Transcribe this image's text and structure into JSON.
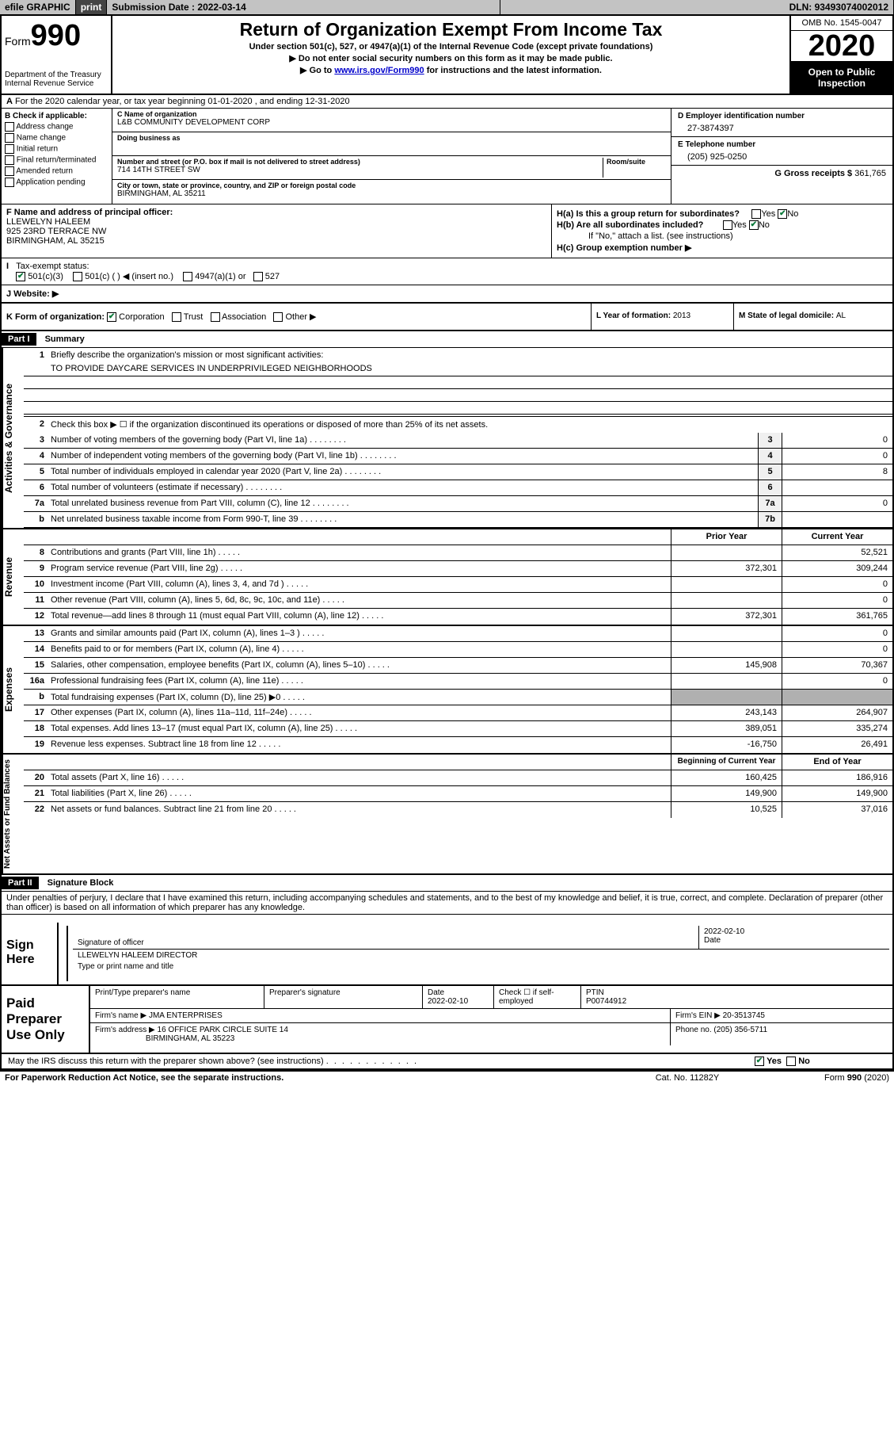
{
  "top_bar": {
    "efile": "efile GRAPHIC",
    "print": "print",
    "sub_date_label": "Submission Date : ",
    "sub_date": "2022-03-14",
    "dln": "DLN: 93493074002012"
  },
  "header": {
    "form_label": "Form",
    "form_num": "990",
    "dept": "Department of the Treasury\nInternal Revenue Service",
    "title": "Return of Organization Exempt From Income Tax",
    "sub1": "Under section 501(c), 527, or 4947(a)(1) of the Internal Revenue Code (except private foundations)",
    "sub2": "▶ Do not enter social security numbers on this form as it may be made public.",
    "sub3_a": "▶ Go to ",
    "sub3_link": "www.irs.gov/Form990",
    "sub3_b": " for instructions and the latest information.",
    "omb": "OMB No. 1545-0047",
    "year": "2020",
    "open": "Open to Public Inspection"
  },
  "line_a": "For the 2020 calendar year, or tax year beginning 01-01-2020   , and ending 12-31-2020",
  "box_b": {
    "title": "B Check if applicable:",
    "items": [
      "Address change",
      "Name change",
      "Initial return",
      "Final return/terminated",
      "Amended return",
      "Application pending"
    ]
  },
  "box_c": {
    "name_label": "C Name of organization",
    "name": "L&B COMMUNITY DEVELOPMENT CORP",
    "dba_label": "Doing business as",
    "addr_label": "Number and street (or P.O. box if mail is not delivered to street address)",
    "room_label": "Room/suite",
    "addr": "714 14TH STREET SW",
    "city_label": "City or town, state or province, country, and ZIP or foreign postal code",
    "city": "BIRMINGHAM, AL  35211"
  },
  "box_d": {
    "label": "D Employer identification number",
    "val": "27-3874397"
  },
  "box_e": {
    "label": "E Telephone number",
    "val": "(205) 925-0250"
  },
  "box_g": {
    "label": "G Gross receipts $ ",
    "val": "361,765"
  },
  "box_f": {
    "label": "F  Name and address of principal officer:",
    "name": "LLEWELYN HALEEM",
    "addr1": "925 23RD TERRACE NW",
    "addr2": "BIRMINGHAM, AL  35215"
  },
  "box_h": {
    "ha": "H(a)  Is this a group return for subordinates?",
    "hb": "H(b)  Are all subordinates included?",
    "hb_note": "If \"No,\" attach a list. (see instructions)",
    "hc": "H(c)  Group exemption number ▶",
    "yes": "Yes",
    "no": "No"
  },
  "box_i": {
    "label": "Tax-exempt status:",
    "opts": [
      "501(c)(3)",
      "501(c) (  ) ◀ (insert no.)",
      "4947(a)(1) or",
      "527"
    ]
  },
  "box_j": {
    "label": "J    Website: ▶"
  },
  "box_k": {
    "label": "K Form of organization:",
    "opts": [
      "Corporation",
      "Trust",
      "Association",
      "Other ▶"
    ]
  },
  "box_l": {
    "label": "L Year of formation: ",
    "val": "2013"
  },
  "box_m": {
    "label": "M State of legal domicile: ",
    "val": "AL"
  },
  "part1": {
    "header": "Part I",
    "title": "Summary",
    "line1_label": "Briefly describe the organization's mission or most significant activities:",
    "line1_val": "TO PROVIDE DAYCARE SERVICES IN UNDERPRIVILEGED NEIGHBORHOODS",
    "line2": "Check this box ▶ ☐  if the organization discontinued its operations or disposed of more than 25% of its net assets.",
    "rows_gov": [
      {
        "n": "3",
        "d": "Number of voting members of the governing body (Part VI, line 1a)",
        "c": "3",
        "v": "0"
      },
      {
        "n": "4",
        "d": "Number of independent voting members of the governing body (Part VI, line 1b)",
        "c": "4",
        "v": "0"
      },
      {
        "n": "5",
        "d": "Total number of individuals employed in calendar year 2020 (Part V, line 2a)",
        "c": "5",
        "v": "8"
      },
      {
        "n": "6",
        "d": "Total number of volunteers (estimate if necessary)",
        "c": "6",
        "v": ""
      },
      {
        "n": "7a",
        "d": "Total unrelated business revenue from Part VIII, column (C), line 12",
        "c": "7a",
        "v": "0"
      },
      {
        "n": "b",
        "d": "Net unrelated business taxable income from Form 990-T, line 39",
        "c": "7b",
        "v": ""
      }
    ],
    "col_prior": "Prior Year",
    "col_current": "Current Year",
    "rows_rev": [
      {
        "n": "8",
        "d": "Contributions and grants (Part VIII, line 1h)",
        "p": "",
        "c": "52,521"
      },
      {
        "n": "9",
        "d": "Program service revenue (Part VIII, line 2g)",
        "p": "372,301",
        "c": "309,244"
      },
      {
        "n": "10",
        "d": "Investment income (Part VIII, column (A), lines 3, 4, and 7d )",
        "p": "",
        "c": "0"
      },
      {
        "n": "11",
        "d": "Other revenue (Part VIII, column (A), lines 5, 6d, 8c, 9c, 10c, and 11e)",
        "p": "",
        "c": "0"
      },
      {
        "n": "12",
        "d": "Total revenue—add lines 8 through 11 (must equal Part VIII, column (A), line 12)",
        "p": "372,301",
        "c": "361,765"
      }
    ],
    "rows_exp": [
      {
        "n": "13",
        "d": "Grants and similar amounts paid (Part IX, column (A), lines 1–3 )",
        "p": "",
        "c": "0"
      },
      {
        "n": "14",
        "d": "Benefits paid to or for members (Part IX, column (A), line 4)",
        "p": "",
        "c": "0"
      },
      {
        "n": "15",
        "d": "Salaries, other compensation, employee benefits (Part IX, column (A), lines 5–10)",
        "p": "145,908",
        "c": "70,367"
      },
      {
        "n": "16a",
        "d": "Professional fundraising fees (Part IX, column (A), line 11e)",
        "p": "",
        "c": "0"
      },
      {
        "n": "b",
        "d": "Total fundraising expenses (Part IX, column (D), line 25) ▶0",
        "p": "SHADE",
        "c": "SHADE"
      },
      {
        "n": "17",
        "d": "Other expenses (Part IX, column (A), lines 11a–11d, 11f–24e)",
        "p": "243,143",
        "c": "264,907"
      },
      {
        "n": "18",
        "d": "Total expenses. Add lines 13–17 (must equal Part IX, column (A), line 25)",
        "p": "389,051",
        "c": "335,274"
      },
      {
        "n": "19",
        "d": "Revenue less expenses. Subtract line 18 from line 12",
        "p": "-16,750",
        "c": "26,491"
      }
    ],
    "col_begin": "Beginning of Current Year",
    "col_end": "End of Year",
    "rows_net": [
      {
        "n": "20",
        "d": "Total assets (Part X, line 16)",
        "p": "160,425",
        "c": "186,916"
      },
      {
        "n": "21",
        "d": "Total liabilities (Part X, line 26)",
        "p": "149,900",
        "c": "149,900"
      },
      {
        "n": "22",
        "d": "Net assets or fund balances. Subtract line 21 from line 20",
        "p": "10,525",
        "c": "37,016"
      }
    ],
    "side_gov": "Activities & Governance",
    "side_rev": "Revenue",
    "side_exp": "Expenses",
    "side_net": "Net Assets or Fund Balances"
  },
  "part2": {
    "header": "Part II",
    "title": "Signature Block",
    "narrative": "Under penalties of perjury, I declare that I have examined this return, including accompanying schedules and statements, and to the best of my knowledge and belief, it is true, correct, and complete. Declaration of preparer (other than officer) is based on all information of which preparer has any knowledge."
  },
  "sign": {
    "label": "Sign Here",
    "sig_label": "Signature of officer",
    "date": "2022-02-10",
    "date_label": "Date",
    "name": "LLEWELYN HALEEM  DIRECTOR",
    "name_label": "Type or print name and title"
  },
  "paid": {
    "label": "Paid Preparer Use Only",
    "r1": {
      "c1_label": "Print/Type preparer's name",
      "c2_label": "Preparer's signature",
      "c3_label": "Date",
      "c3_val": "2022-02-10",
      "c4_label": "Check ☐ if self-employed",
      "c5_label": "PTIN",
      "c5_val": "P00744912"
    },
    "r2": {
      "firm_label": "Firm's name    ▶ ",
      "firm": "JMA ENTERPRISES",
      "ein_label": "Firm's EIN ▶ ",
      "ein": "20-3513745"
    },
    "r3": {
      "addr_label": "Firm's address ▶ ",
      "addr1": "16 OFFICE PARK CIRCLE SUITE 14",
      "addr2": "BIRMINGHAM, AL  35223",
      "phone_label": "Phone no. ",
      "phone": "(205) 356-5711"
    }
  },
  "discuss": "May the IRS discuss this return with the preparer shown above? (see instructions)",
  "footer": {
    "f1": "For Paperwork Reduction Act Notice, see the separate instructions.",
    "f2": "Cat. No. 11282Y",
    "f3": "Form 990 (2020)"
  }
}
